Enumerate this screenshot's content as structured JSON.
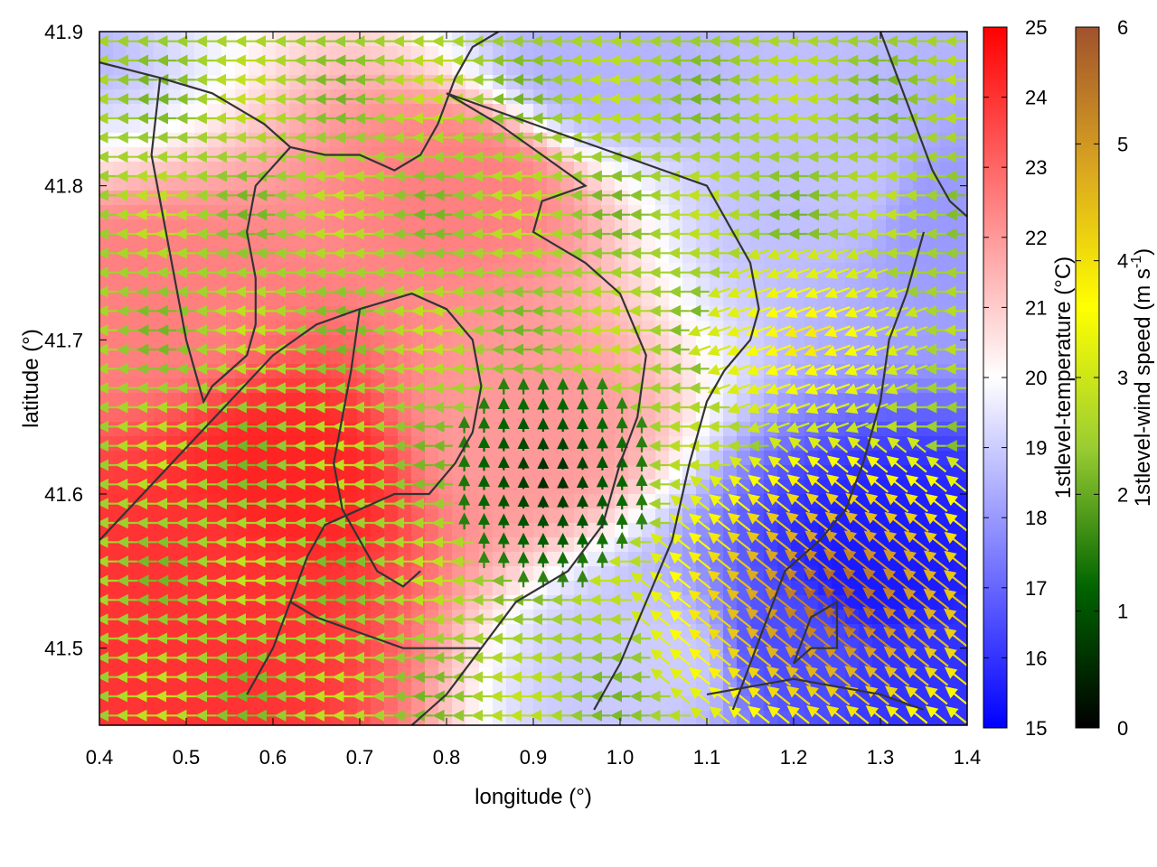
{
  "chart_data": {
    "type": "heatmap",
    "subtype": "scalar field with wind vectors and terrain contours",
    "xlabel": "longitude (°)",
    "ylabel": "latitude (°)",
    "xlim": [
      0.4,
      1.4
    ],
    "ylim": [
      41.45,
      41.9
    ],
    "x_ticks": [
      0.4,
      0.5,
      0.6,
      0.7,
      0.8,
      0.9,
      1.0,
      1.1,
      1.2,
      1.3,
      1.4
    ],
    "x_tick_labels": [
      "0.4",
      "0.5",
      "0.6",
      "0.7",
      "0.8",
      "0.9",
      "1.0",
      "1.1",
      "1.2",
      "1.3",
      "1.4"
    ],
    "y_ticks": [
      41.5,
      41.6,
      41.7,
      41.8,
      41.9
    ],
    "y_tick_labels": [
      "41.5",
      "41.6",
      "41.7",
      "41.8",
      "41.9"
    ],
    "grid": false,
    "temperature_colorbar": {
      "label": "1stlevel-temperature (°C)",
      "range": [
        15,
        25
      ],
      "ticks": [
        "15",
        "16",
        "17",
        "18",
        "19",
        "20",
        "21",
        "22",
        "23",
        "24",
        "25"
      ],
      "colors": [
        "#0000ff",
        "#ffffff",
        "#ff0000"
      ]
    },
    "wind_colorbar": {
      "label_main": "1stlevel-wind speed (m s",
      "label_sup": "-1",
      "label_end": ")",
      "range": [
        0,
        6
      ],
      "ticks": [
        "0",
        "1",
        "2",
        "3",
        "4",
        "5",
        "6"
      ],
      "colors": [
        "#000000",
        "#006400",
        "#9acd32",
        "#ffff00",
        "#daa520",
        "#a0522d"
      ]
    },
    "temperature_centers": [
      {
        "x": 0.5,
        "y": 41.55,
        "value": 24
      },
      {
        "x": 0.62,
        "y": 41.61,
        "value": 24.3
      },
      {
        "x": 0.45,
        "y": 41.72,
        "value": 22.5
      },
      {
        "x": 0.52,
        "y": 41.49,
        "value": 24
      },
      {
        "x": 0.29,
        "y": 41.9,
        "value": 23.5
      },
      {
        "x": 0.88,
        "y": 41.64,
        "value": 22
      },
      {
        "x": 0.82,
        "y": 41.8,
        "value": 22.5
      },
      {
        "x": 0.36,
        "y": 41.89,
        "value": 18.5
      },
      {
        "x": 0.97,
        "y": 41.88,
        "value": 18.5
      },
      {
        "x": 1.25,
        "y": 41.8,
        "value": 18.8
      },
      {
        "x": 1.38,
        "y": 41.78,
        "value": 18
      },
      {
        "x": 1.3,
        "y": 41.55,
        "value": 15.5
      },
      {
        "x": 1.36,
        "y": 41.48,
        "value": 16
      },
      {
        "x": 1.2,
        "y": 41.5,
        "value": 16.5
      },
      {
        "x": 1.05,
        "y": 41.49,
        "value": 19
      }
    ],
    "wind_regions": [
      {
        "description": "west/northwest region",
        "direction_deg": 180,
        "speed": 2.5
      },
      {
        "description": "central calm region",
        "center": [
          0.92,
          41.61
        ],
        "speed": 0.4
      },
      {
        "description": "southeast outflow",
        "center": [
          1.26,
          41.53
        ],
        "speed": 5.0
      },
      {
        "description": "northeast slope",
        "center": [
          1.22,
          41.7
        ],
        "speed": 4.0
      }
    ],
    "contours": [
      [
        [
          0.4,
          41.88
        ],
        [
          0.47,
          41.87
        ],
        [
          0.53,
          41.86
        ],
        [
          0.56,
          41.85
        ],
        [
          0.59,
          41.84
        ],
        [
          0.62,
          41.825
        ],
        [
          0.66,
          41.82
        ],
        [
          0.7,
          41.82
        ],
        [
          0.74,
          41.81
        ],
        [
          0.77,
          41.82
        ],
        [
          0.79,
          41.84
        ],
        [
          0.81,
          41.87
        ],
        [
          0.83,
          41.89
        ],
        [
          0.86,
          41.9
        ]
      ],
      [
        [
          0.62,
          41.825
        ],
        [
          0.58,
          41.8
        ],
        [
          0.57,
          41.77
        ],
        [
          0.58,
          41.74
        ],
        [
          0.58,
          41.71
        ],
        [
          0.57,
          41.69
        ],
        [
          0.55,
          41.68
        ],
        [
          0.53,
          41.67
        ],
        [
          0.52,
          41.66
        ],
        [
          0.5,
          41.7
        ],
        [
          0.48,
          41.76
        ],
        [
          0.46,
          41.82
        ],
        [
          0.47,
          41.87
        ]
      ],
      [
        [
          0.8,
          41.86
        ],
        [
          0.86,
          41.84
        ],
        [
          0.91,
          41.82
        ],
        [
          0.96,
          41.8
        ],
        [
          0.91,
          41.79
        ],
        [
          0.9,
          41.77
        ],
        [
          0.96,
          41.75
        ],
        [
          1.0,
          41.73
        ],
        [
          1.03,
          41.69
        ],
        [
          1.02,
          41.65
        ],
        [
          1.0,
          41.62
        ],
        [
          0.98,
          41.58
        ],
        [
          0.94,
          41.55
        ],
        [
          0.88,
          41.53
        ],
        [
          0.84,
          41.5
        ],
        [
          0.8,
          41.47
        ],
        [
          0.76,
          41.45
        ]
      ],
      [
        [
          0.8,
          41.86
        ],
        [
          0.85,
          41.85
        ],
        [
          0.9,
          41.84
        ],
        [
          0.95,
          41.83
        ],
        [
          1.0,
          41.82
        ],
        [
          1.05,
          41.81
        ],
        [
          1.1,
          41.8
        ],
        [
          1.13,
          41.77
        ],
        [
          1.15,
          41.75
        ],
        [
          1.16,
          41.72
        ],
        [
          1.15,
          41.7
        ],
        [
          1.12,
          41.68
        ],
        [
          1.1,
          41.66
        ],
        [
          1.08,
          41.62
        ],
        [
          1.06,
          41.57
        ],
        [
          1.03,
          41.53
        ],
        [
          1.0,
          41.49
        ],
        [
          0.97,
          41.46
        ]
      ],
      [
        [
          0.4,
          41.57
        ],
        [
          0.45,
          41.6
        ],
        [
          0.5,
          41.63
        ],
        [
          0.55,
          41.66
        ],
        [
          0.6,
          41.69
        ],
        [
          0.65,
          41.71
        ],
        [
          0.7,
          41.72
        ],
        [
          0.76,
          41.73
        ],
        [
          0.8,
          41.72
        ],
        [
          0.83,
          41.7
        ],
        [
          0.84,
          41.67
        ],
        [
          0.83,
          41.64
        ],
        [
          0.81,
          41.62
        ],
        [
          0.78,
          41.6
        ],
        [
          0.74,
          41.6
        ],
        [
          0.7,
          41.59
        ],
        [
          0.66,
          41.58
        ],
        [
          0.64,
          41.56
        ],
        [
          0.62,
          41.53
        ],
        [
          0.6,
          41.5
        ],
        [
          0.57,
          41.47
        ]
      ],
      [
        [
          0.62,
          41.53
        ],
        [
          0.65,
          41.52
        ],
        [
          0.7,
          41.51
        ],
        [
          0.75,
          41.5
        ],
        [
          0.8,
          41.5
        ],
        [
          0.84,
          41.5
        ]
      ],
      [
        [
          0.7,
          41.72
        ],
        [
          0.69,
          41.68
        ],
        [
          0.68,
          41.65
        ],
        [
          0.67,
          41.62
        ],
        [
          0.68,
          41.59
        ],
        [
          0.7,
          41.57
        ],
        [
          0.72,
          41.55
        ],
        [
          0.75,
          41.54
        ],
        [
          0.77,
          41.55
        ]
      ],
      [
        [
          1.3,
          41.9
        ],
        [
          1.32,
          41.87
        ],
        [
          1.34,
          41.84
        ],
        [
          1.36,
          41.81
        ],
        [
          1.38,
          41.79
        ],
        [
          1.4,
          41.78
        ]
      ],
      [
        [
          1.35,
          41.77
        ],
        [
          1.33,
          41.73
        ],
        [
          1.31,
          41.7
        ],
        [
          1.3,
          41.66
        ],
        [
          1.28,
          41.62
        ],
        [
          1.26,
          41.59
        ],
        [
          1.23,
          41.57
        ],
        [
          1.21,
          41.56
        ],
        [
          1.19,
          41.55
        ],
        [
          1.17,
          41.52
        ],
        [
          1.15,
          41.49
        ],
        [
          1.13,
          41.46
        ]
      ],
      [
        [
          1.2,
          41.49
        ],
        [
          1.22,
          41.5
        ],
        [
          1.25,
          41.5
        ],
        [
          1.25,
          41.53
        ],
        [
          1.22,
          41.52
        ],
        [
          1.2,
          41.49
        ]
      ],
      [
        [
          1.1,
          41.47
        ],
        [
          1.15,
          41.475
        ],
        [
          1.2,
          41.48
        ],
        [
          1.25,
          41.475
        ],
        [
          1.3,
          41.47
        ],
        [
          1.35,
          41.46
        ]
      ]
    ]
  }
}
